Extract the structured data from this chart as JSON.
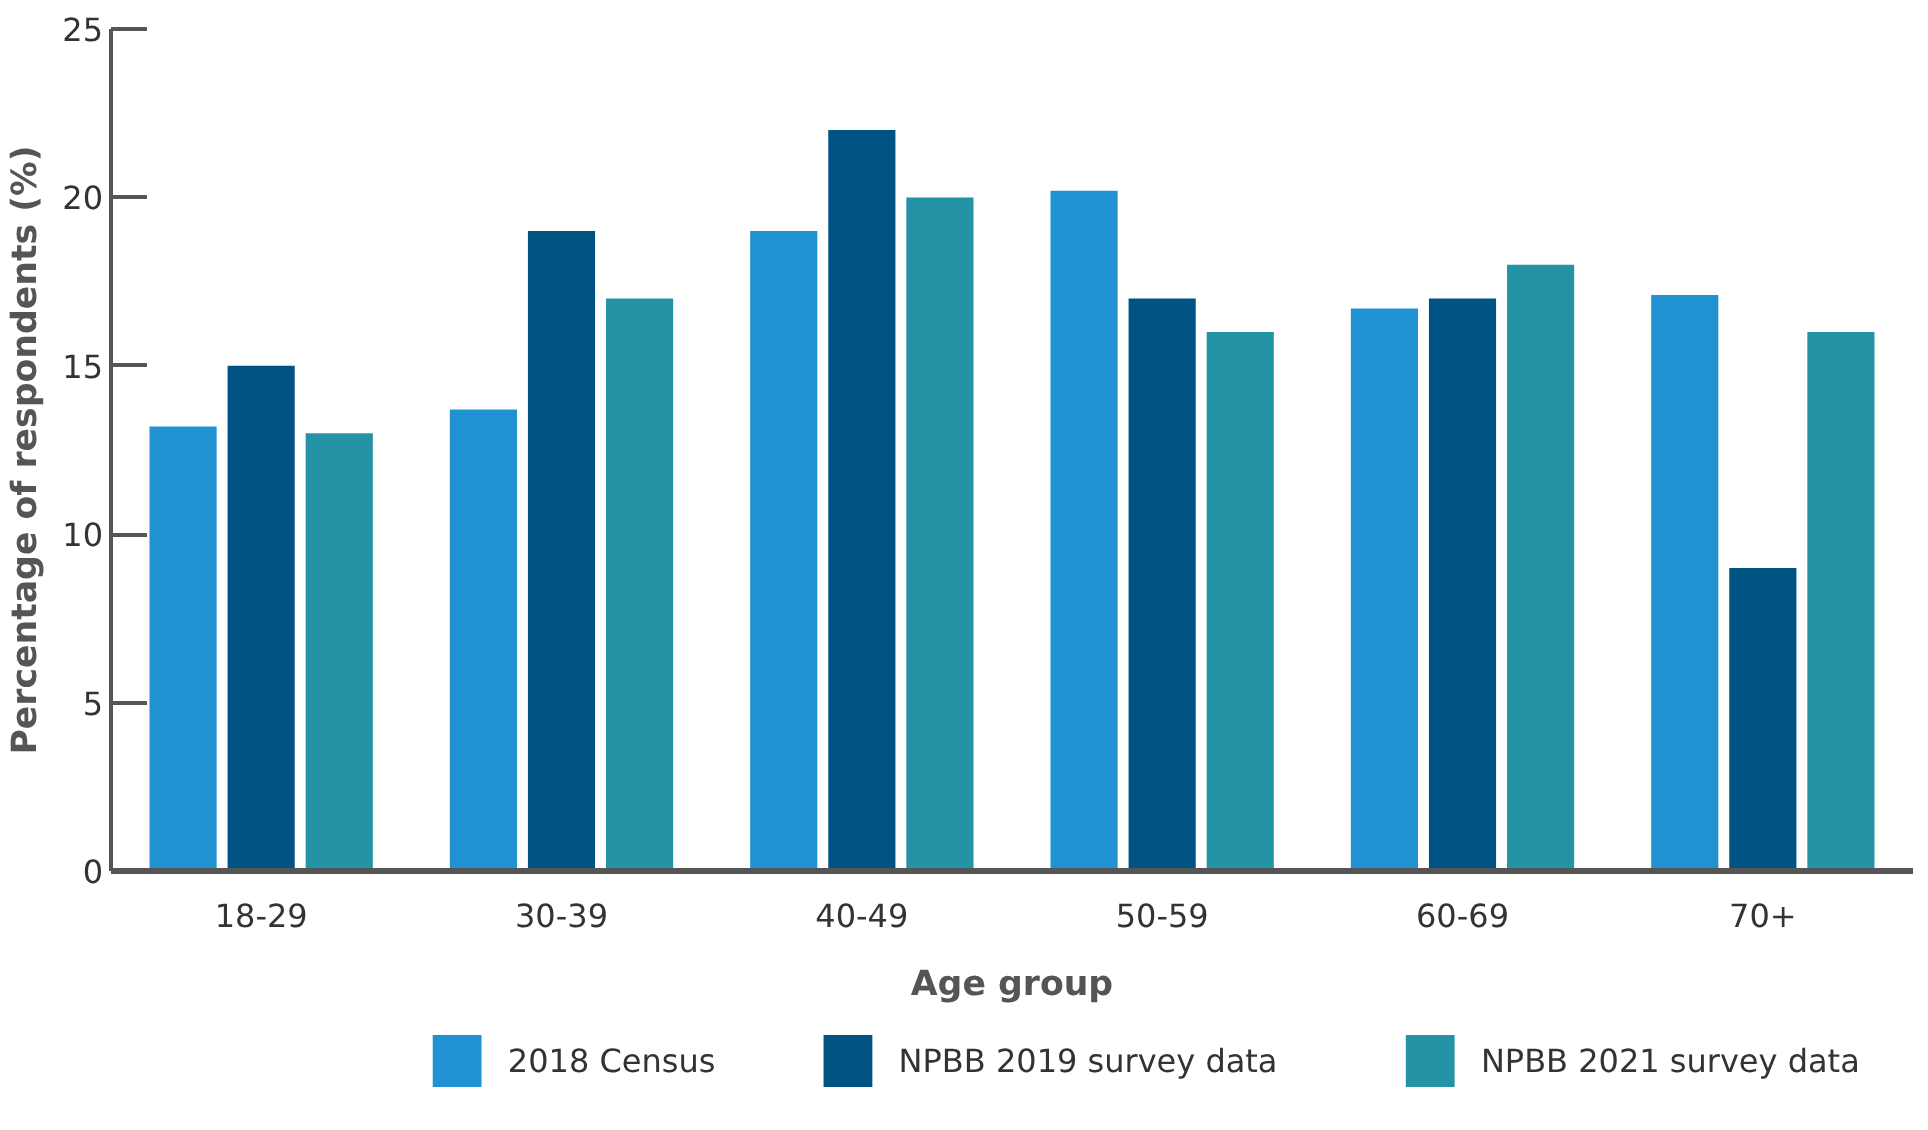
{
  "chart_data": {
    "type": "bar",
    "xlabel": "Age group",
    "ylabel": "Percentage of respondents (%)",
    "categories": [
      "18-29",
      "30-39",
      "40-49",
      "50-59",
      "60-69",
      "70+"
    ],
    "series": [
      {
        "name": "2018 Census",
        "color": "#2192d1",
        "values": [
          13.2,
          13.7,
          19,
          20.2,
          16.7,
          17.1
        ]
      },
      {
        "name": "NPBB 2019 survey data",
        "color": "#015384",
        "values": [
          15,
          19,
          22,
          17,
          17,
          9
        ]
      },
      {
        "name": "NPBB 2021 survey data",
        "color": "#2493a5",
        "values": [
          13,
          17,
          20,
          16,
          18,
          16
        ]
      }
    ],
    "ylim": [
      0,
      25
    ],
    "yticks": [
      0,
      5,
      10,
      15,
      20,
      25
    ],
    "grid": false,
    "legend": "bottom"
  }
}
